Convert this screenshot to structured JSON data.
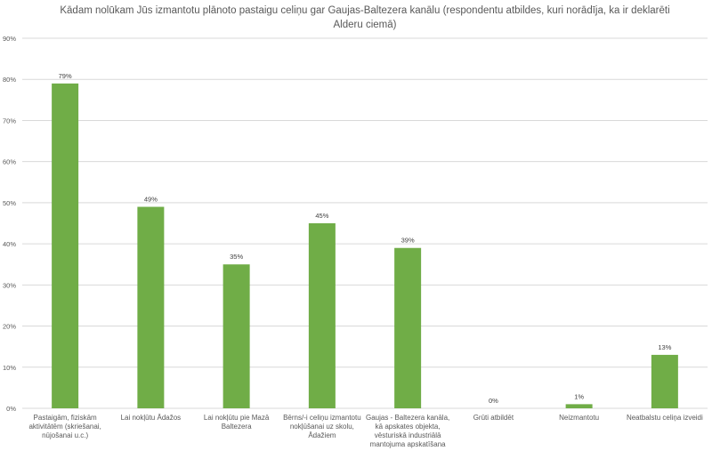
{
  "chart_data": {
    "type": "bar",
    "title": "Kādam nolūkam Jūs izmantotu plānoto pastaigu celiņu gar Gaujas-Baltezera kanālu (respondentu atbildes, kuri norādīja, ka ir deklarēti Alderu ciemā)",
    "categories": [
      "Pastaigām, fiziskām aktivitātēm (skriešanai, nūjošanai u.c.)",
      "Lai nokļūtu Ādažos",
      "Lai nokļūtu pie Mazā Baltezera",
      "Bērns/-i celiņu izmantotu nokļūšanai uz skolu, Ādažiem",
      "Gaujas - Baltezera kanāla, kā apskates objekta, vēsturiskā industriālā mantojuma apskatīšana",
      "Grūti atbildēt",
      "Neizmantotu",
      "Neatbalstu celiņa izveidi"
    ],
    "values": [
      79,
      49,
      35,
      45,
      39,
      0,
      1,
      13
    ],
    "value_labels": [
      "79%",
      "49%",
      "35%",
      "45%",
      "39%",
      "0%",
      "1%",
      "13%"
    ],
    "ylim": [
      0,
      90
    ],
    "y_ticks": [
      0,
      10,
      20,
      30,
      40,
      50,
      60,
      70,
      80,
      90
    ],
    "y_tick_labels": [
      "0%",
      "10%",
      "20%",
      "30%",
      "40%",
      "50%",
      "60%",
      "70%",
      "80%",
      "90%"
    ],
    "xlabel": "",
    "ylabel": "",
    "grid": true,
    "bar_color": "#70AD47",
    "grid_color": "#D9D9D9"
  }
}
